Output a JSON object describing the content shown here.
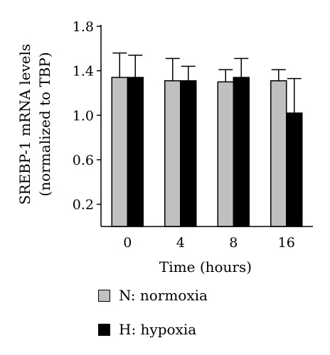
{
  "chart_data": {
    "type": "bar",
    "categories": [
      "0",
      "4",
      "8",
      "16"
    ],
    "xlabel": "Time (hours)",
    "ylabel_lines": [
      "SREBP-1 mRNA levels",
      "(normalized to TBP)"
    ],
    "ylim": [
      0,
      1.8
    ],
    "yticks": [
      "0.2",
      "0.6",
      "1.0",
      "1.4",
      "1.8"
    ],
    "error_bars": "upper",
    "grid": false,
    "legend_position": "bottom",
    "series": [
      {
        "name": "N: normoxia",
        "color": "#c0c0c0",
        "values": [
          1.34,
          1.31,
          1.3,
          1.31
        ],
        "errors": [
          0.22,
          0.2,
          0.11,
          0.1
        ]
      },
      {
        "name": "H: hypoxia",
        "color": "#000000",
        "values": [
          1.34,
          1.31,
          1.34,
          1.02
        ],
        "errors": [
          0.2,
          0.13,
          0.17,
          0.31
        ]
      }
    ]
  }
}
